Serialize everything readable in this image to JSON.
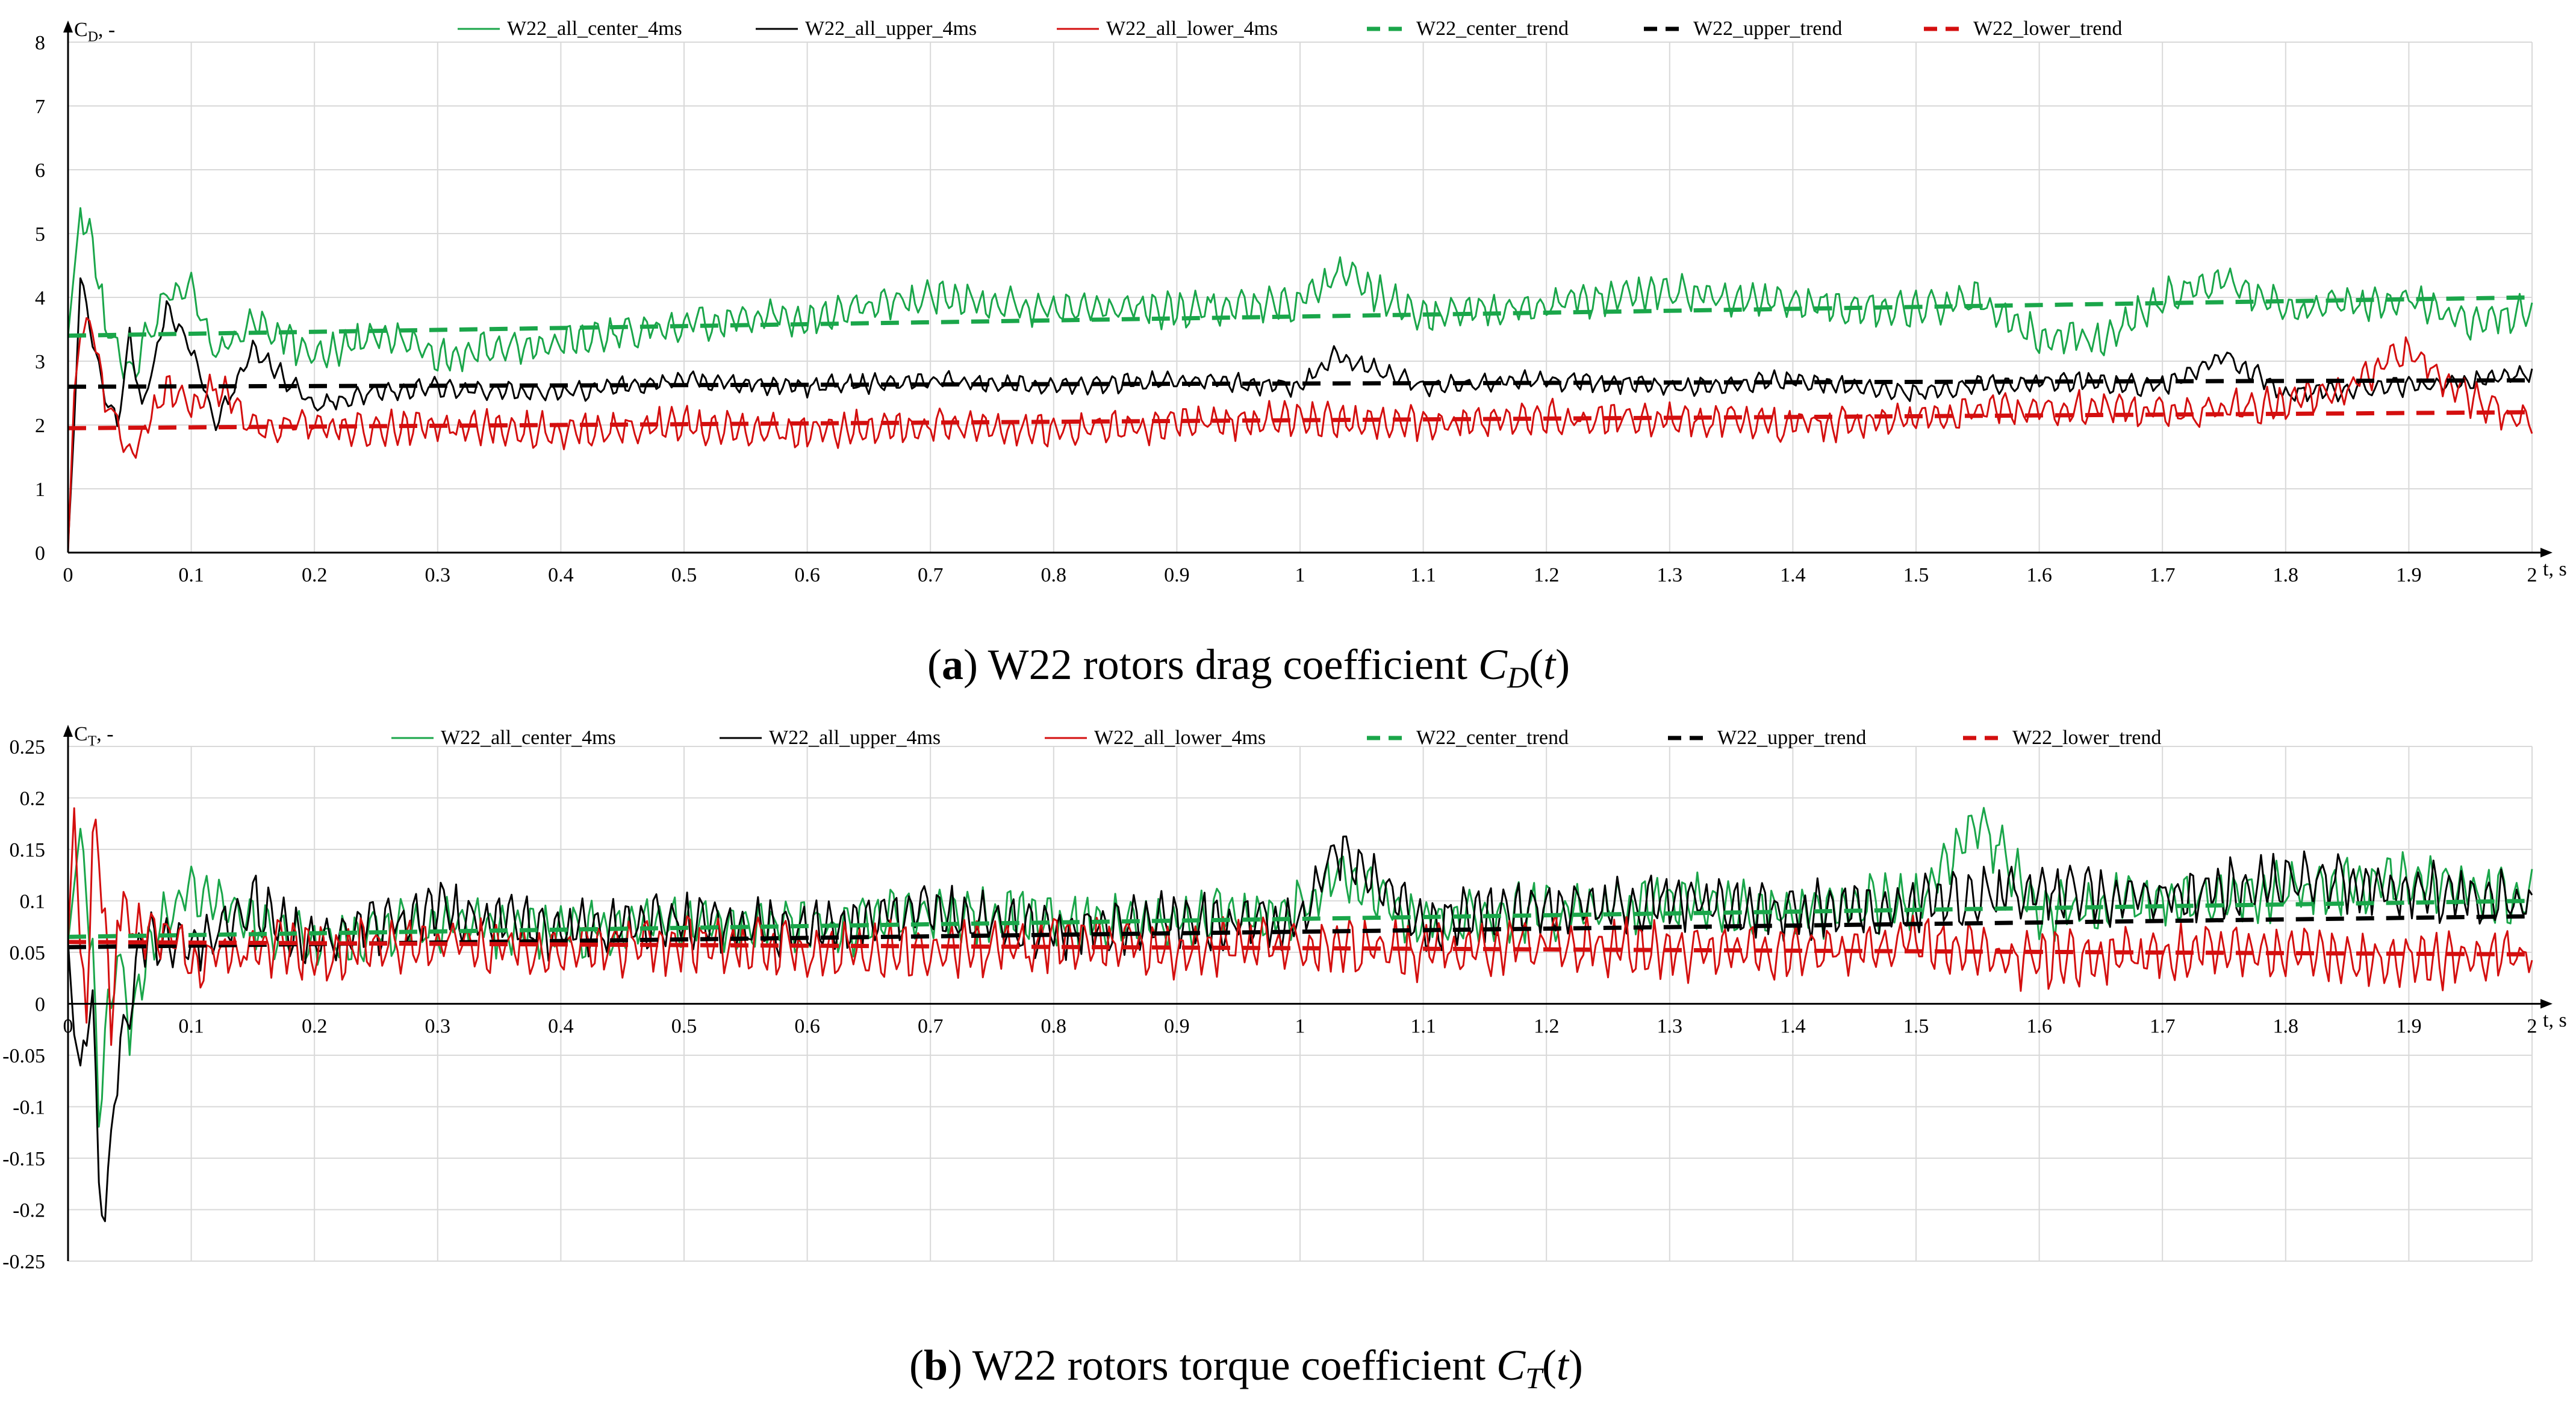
{
  "colors": {
    "center": "#1aa64a",
    "upper": "#000000",
    "lower": "#d40f0f",
    "grid": "#d9d9d9",
    "axis": "#000000"
  },
  "chart_data": [
    {
      "panel": "a",
      "type": "line",
      "caption_prefix": "(a)",
      "caption_text": "W22 rotors drag coefficient",
      "caption_math": "C_D(t)",
      "ylabel": "C_D, -",
      "xlabel": "t, s",
      "xlim": [
        0,
        2
      ],
      "ylim": [
        0,
        8
      ],
      "xticks": [
        "0",
        "0.1",
        "0.2",
        "0.3",
        "0.4",
        "0.5",
        "0.6",
        "0.7",
        "0.8",
        "0.9",
        "1",
        "1.1",
        "1.2",
        "1.3",
        "1.4",
        "1.5",
        "1.6",
        "1.7",
        "1.8",
        "1.9",
        "2"
      ],
      "yticks": [
        "0",
        "1",
        "2",
        "3",
        "4",
        "5",
        "6",
        "7",
        "8"
      ],
      "grid": true,
      "legend_position": "top",
      "series": [
        {
          "name": "W22_all_center_4ms",
          "key": "center",
          "style": "solid",
          "x": [
            0,
            0.01,
            0.02,
            0.03,
            0.05,
            0.07,
            0.08,
            0.1,
            0.12,
            0.15,
            0.2,
            0.25,
            0.3,
            0.35,
            0.4,
            0.5,
            0.6,
            0.7,
            0.8,
            0.9,
            1.0,
            1.03,
            1.1,
            1.2,
            1.3,
            1.4,
            1.5,
            1.55,
            1.6,
            1.65,
            1.7,
            1.75,
            1.8,
            1.85,
            1.9,
            1.95,
            2.0
          ],
          "y": [
            3.4,
            5.4,
            4.8,
            3.6,
            2.8,
            3.6,
            4.1,
            4.1,
            3.1,
            3.6,
            3.1,
            3.4,
            3.1,
            3.2,
            3.3,
            3.6,
            3.7,
            4.0,
            3.8,
            3.8,
            3.9,
            4.4,
            3.7,
            3.9,
            4.1,
            3.9,
            3.8,
            4.0,
            3.4,
            3.3,
            4.0,
            4.3,
            3.8,
            3.9,
            4.0,
            3.6,
            3.8
          ]
        },
        {
          "name": "W22_all_upper_4ms",
          "key": "upper",
          "style": "solid",
          "x": [
            0,
            0.005,
            0.01,
            0.02,
            0.03,
            0.04,
            0.05,
            0.06,
            0.08,
            0.1,
            0.12,
            0.15,
            0.2,
            0.25,
            0.3,
            0.4,
            0.5,
            0.6,
            0.7,
            0.8,
            0.9,
            1.0,
            1.03,
            1.1,
            1.2,
            1.3,
            1.4,
            1.5,
            1.6,
            1.7,
            1.75,
            1.8,
            1.9,
            2.0
          ],
          "y": [
            0.1,
            2.0,
            4.3,
            3.3,
            2.5,
            2.0,
            3.4,
            2.2,
            3.8,
            3.2,
            2.0,
            3.2,
            2.3,
            2.5,
            2.6,
            2.5,
            2.7,
            2.6,
            2.7,
            2.6,
            2.7,
            2.6,
            3.1,
            2.6,
            2.7,
            2.6,
            2.7,
            2.5,
            2.7,
            2.6,
            3.1,
            2.5,
            2.6,
            2.8
          ]
        },
        {
          "name": "W22_all_lower_4ms",
          "key": "lower",
          "style": "solid",
          "x": [
            0,
            0.005,
            0.01,
            0.02,
            0.03,
            0.05,
            0.06,
            0.08,
            0.1,
            0.12,
            0.15,
            0.2,
            0.25,
            0.3,
            0.4,
            0.5,
            0.6,
            0.7,
            0.8,
            0.9,
            1.0,
            1.1,
            1.2,
            1.3,
            1.4,
            1.5,
            1.6,
            1.7,
            1.8,
            1.85,
            1.9,
            1.95,
            2.0
          ],
          "y": [
            0.0,
            2.5,
            3.4,
            3.5,
            2.4,
            1.6,
            1.8,
            2.6,
            2.3,
            2.6,
            2.0,
            2.0,
            1.9,
            2.0,
            1.9,
            2.0,
            1.9,
            2.0,
            1.9,
            2.0,
            2.1,
            2.0,
            2.1,
            2.1,
            2.0,
            2.1,
            2.3,
            2.2,
            2.3,
            2.6,
            3.2,
            2.4,
            2.0
          ]
        },
        {
          "name": "W22_center_trend",
          "key": "center",
          "style": "dashed",
          "x": [
            0,
            2
          ],
          "y": [
            3.4,
            4.0
          ]
        },
        {
          "name": "W22_upper_trend",
          "key": "upper",
          "style": "dashed",
          "x": [
            0,
            2
          ],
          "y": [
            2.6,
            2.7
          ]
        },
        {
          "name": "W22_lower_trend",
          "key": "lower",
          "style": "dashed",
          "x": [
            0,
            2
          ],
          "y": [
            1.95,
            2.2
          ]
        }
      ]
    },
    {
      "panel": "b",
      "type": "line",
      "caption_prefix": "(b)",
      "caption_text": "W22 rotors torque coefficient",
      "caption_math": "C_T(t)",
      "ylabel": "C_T, -",
      "xlabel": "t, s",
      "xlim": [
        0,
        2
      ],
      "ylim": [
        -0.25,
        0.25
      ],
      "xticks": [
        "0",
        "0.1",
        "0.2",
        "0.3",
        "0.4",
        "0.5",
        "0.6",
        "0.7",
        "0.8",
        "0.9",
        "1",
        "1.1",
        "1.2",
        "1.3",
        "1.4",
        "1.5",
        "1.6",
        "1.7",
        "1.8",
        "1.9",
        "2"
      ],
      "yticks": [
        "-0.25",
        "-0.2",
        "-0.15",
        "-0.1",
        "-0.05",
        "0",
        "0.05",
        "0.1",
        "0.15",
        "0.2",
        "0.25"
      ],
      "grid": true,
      "legend_position": "top",
      "series": [
        {
          "name": "W22_all_center_4ms",
          "key": "center",
          "style": "solid",
          "x": [
            0,
            0.01,
            0.02,
            0.025,
            0.03,
            0.04,
            0.05,
            0.07,
            0.1,
            0.15,
            0.2,
            0.3,
            0.4,
            0.5,
            0.6,
            0.7,
            0.8,
            0.9,
            1.0,
            1.03,
            1.1,
            1.2,
            1.3,
            1.4,
            1.5,
            1.55,
            1.6,
            1.7,
            1.8,
            1.9,
            2.0
          ],
          "y": [
            0.06,
            0.17,
            0.05,
            -0.11,
            -0.03,
            0.05,
            -0.02,
            0.07,
            0.11,
            0.08,
            0.06,
            0.08,
            0.07,
            0.08,
            0.07,
            0.09,
            0.08,
            0.08,
            0.09,
            0.13,
            0.08,
            0.09,
            0.1,
            0.09,
            0.1,
            0.18,
            0.09,
            0.1,
            0.11,
            0.12,
            0.1
          ]
        },
        {
          "name": "W22_all_upper_4ms",
          "key": "upper",
          "style": "solid",
          "x": [
            0,
            0.005,
            0.01,
            0.015,
            0.02,
            0.025,
            0.03,
            0.035,
            0.04,
            0.05,
            0.06,
            0.08,
            0.1,
            0.15,
            0.2,
            0.3,
            0.4,
            0.5,
            0.6,
            0.7,
            0.8,
            0.9,
            1.0,
            1.03,
            1.1,
            1.2,
            1.3,
            1.4,
            1.5,
            1.6,
            1.7,
            1.8,
            1.9,
            2.0
          ],
          "y": [
            0.06,
            -0.03,
            -0.06,
            -0.03,
            0.0,
            -0.17,
            -0.21,
            -0.13,
            -0.07,
            0.0,
            0.06,
            0.06,
            0.05,
            0.1,
            0.06,
            0.09,
            0.07,
            0.08,
            0.07,
            0.09,
            0.07,
            0.08,
            0.08,
            0.15,
            0.08,
            0.09,
            0.1,
            0.09,
            0.1,
            0.11,
            0.1,
            0.12,
            0.11,
            0.1
          ]
        },
        {
          "name": "W22_all_lower_4ms",
          "key": "lower",
          "style": "solid",
          "x": [
            0,
            0.005,
            0.01,
            0.015,
            0.02,
            0.03,
            0.035,
            0.04,
            0.06,
            0.08,
            0.1,
            0.15,
            0.2,
            0.3,
            0.4,
            0.5,
            0.6,
            0.7,
            0.8,
            0.9,
            1.0,
            1.1,
            1.2,
            1.3,
            1.4,
            1.5,
            1.6,
            1.7,
            1.8,
            1.9,
            2.0
          ],
          "y": [
            0.06,
            0.19,
            0.05,
            -0.02,
            0.17,
            0.1,
            -0.05,
            0.09,
            0.07,
            0.07,
            0.04,
            0.06,
            0.05,
            0.06,
            0.05,
            0.06,
            0.05,
            0.05,
            0.06,
            0.05,
            0.06,
            0.05,
            0.06,
            0.05,
            0.05,
            0.06,
            0.04,
            0.05,
            0.05,
            0.04,
            0.05
          ]
        },
        {
          "name": "W22_center_trend",
          "key": "center",
          "style": "dashed",
          "x": [
            0,
            2
          ],
          "y": [
            0.065,
            0.1
          ]
        },
        {
          "name": "W22_upper_trend",
          "key": "upper",
          "style": "dashed",
          "x": [
            0,
            2
          ],
          "y": [
            0.055,
            0.085
          ]
        },
        {
          "name": "W22_lower_trend",
          "key": "lower",
          "style": "dashed",
          "x": [
            0,
            2
          ],
          "y": [
            0.06,
            0.048
          ]
        }
      ]
    }
  ]
}
